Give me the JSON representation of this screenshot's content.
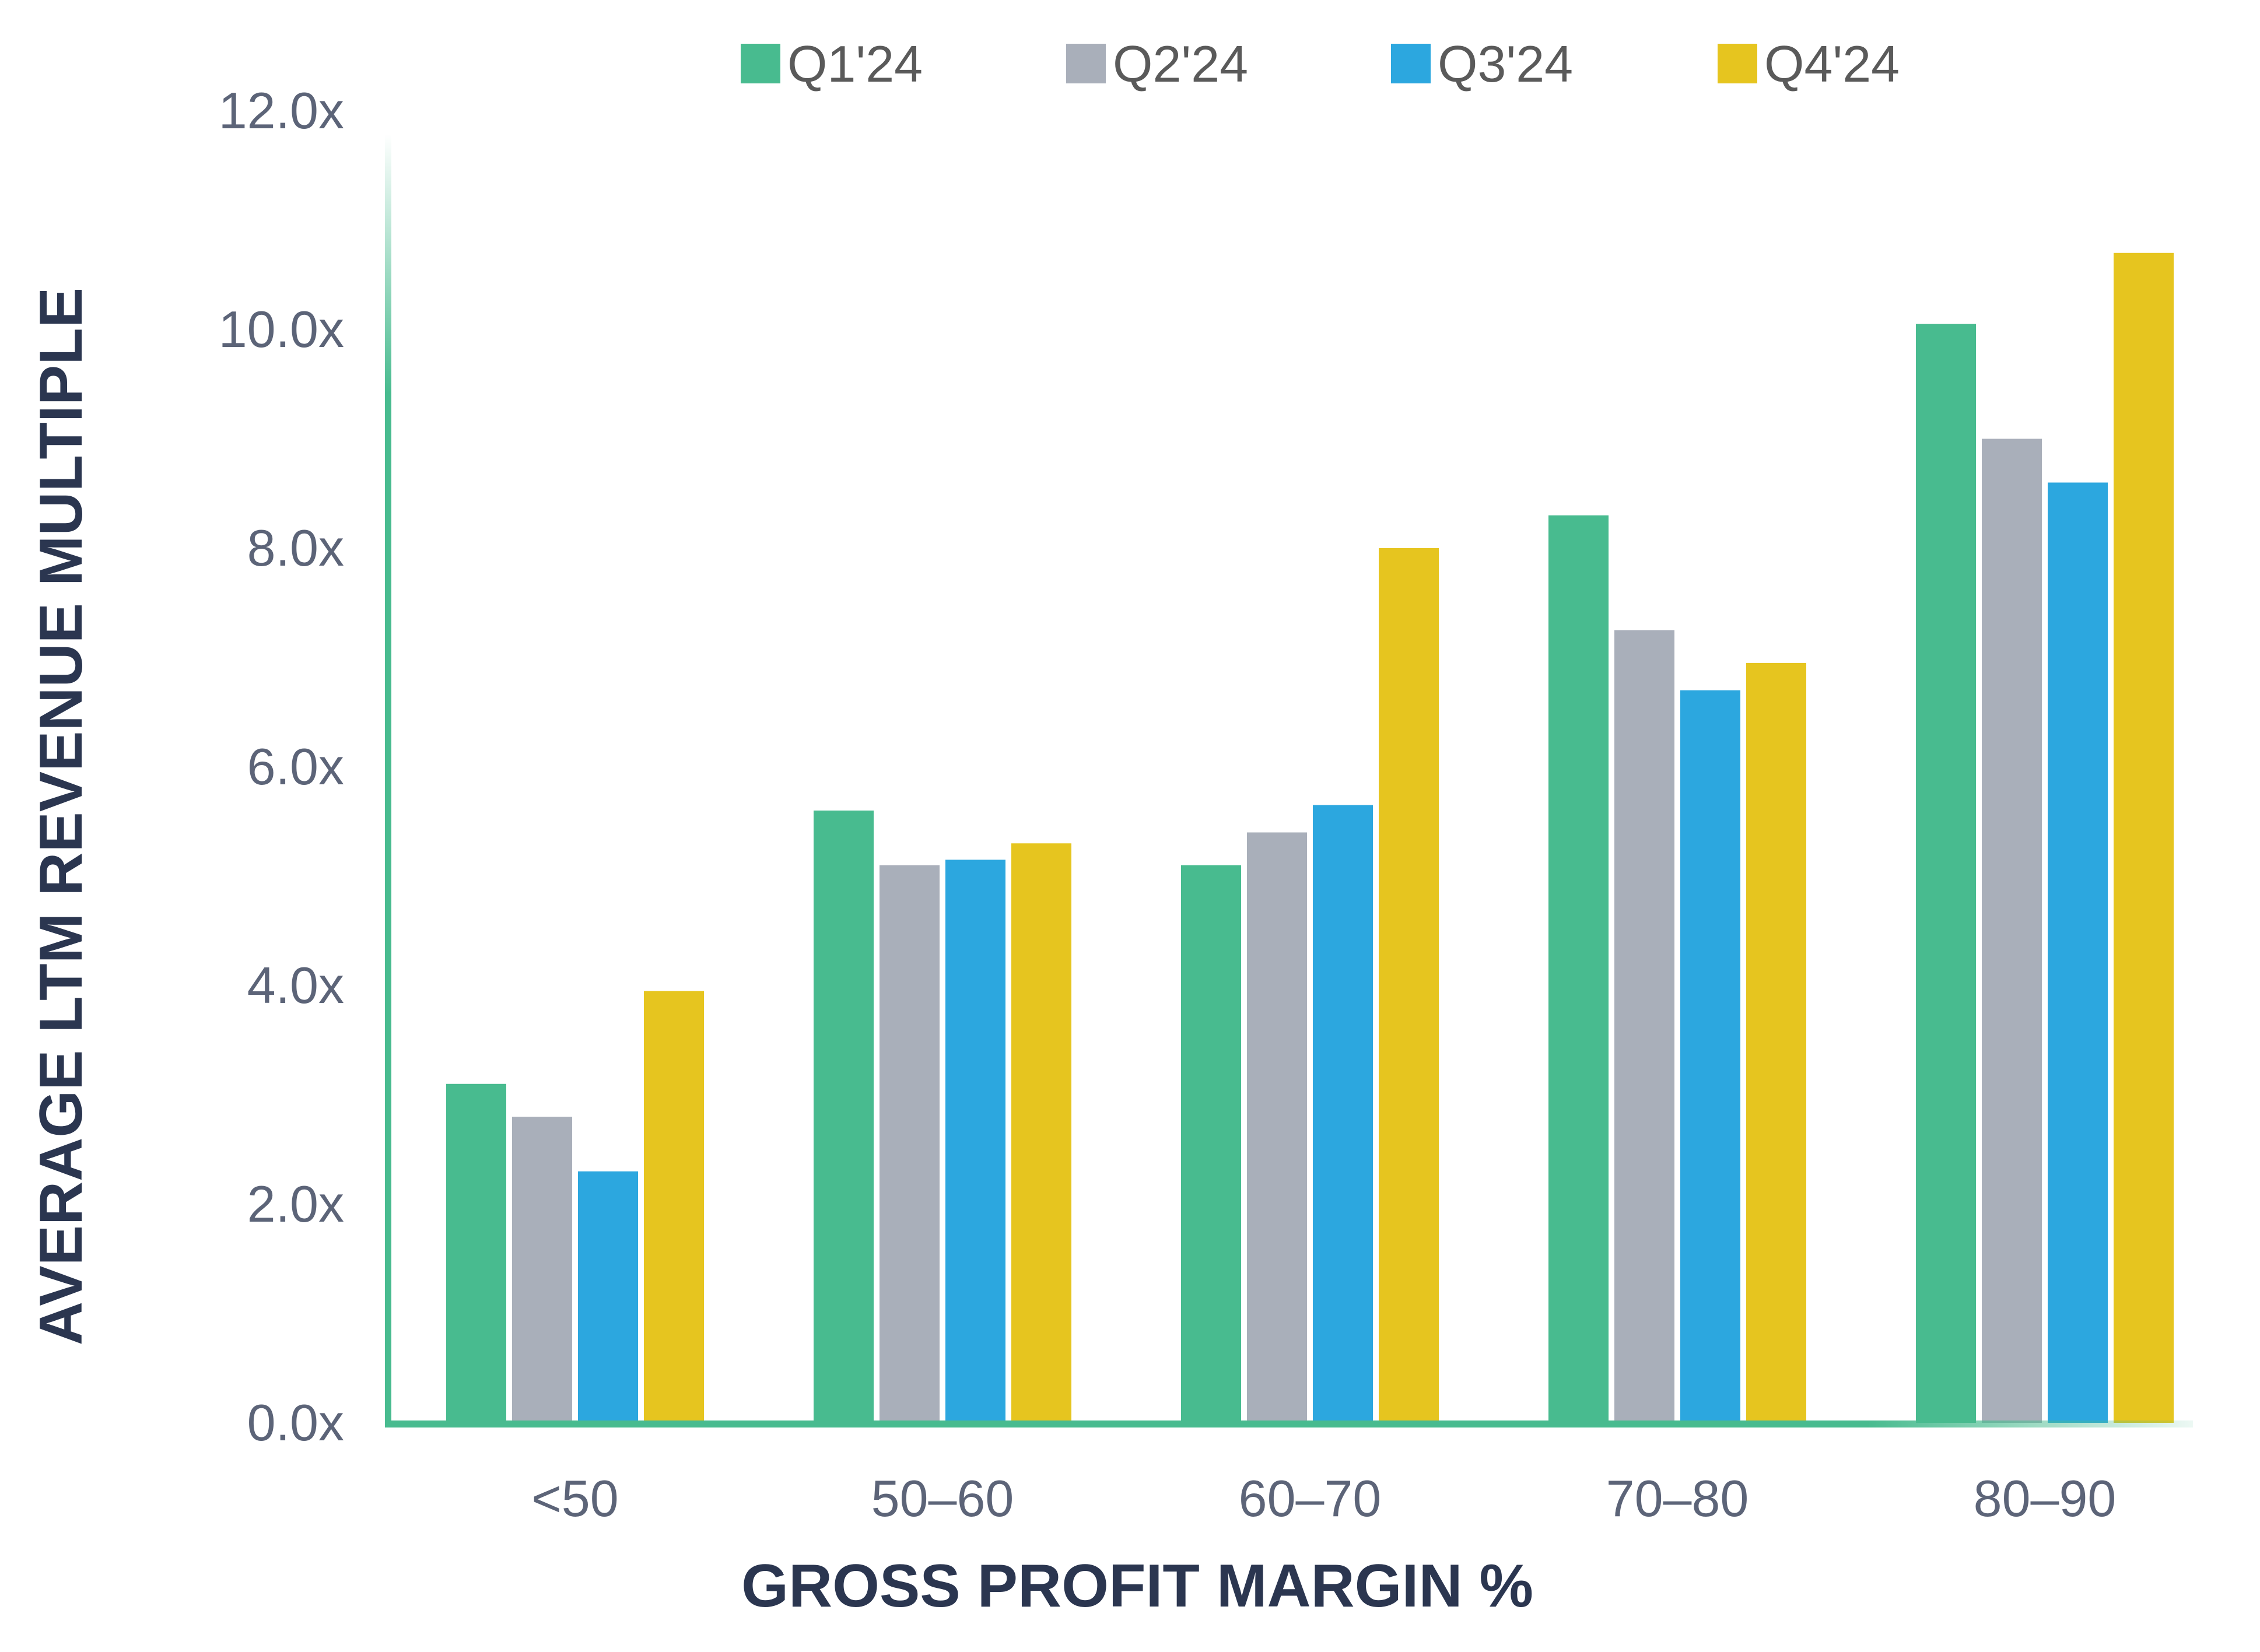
{
  "chart_data": {
    "type": "bar",
    "title": "",
    "xlabel": "GROSS PROFIT MARGIN %",
    "ylabel": "AVERAGE LTM REVENUE MULTIPLE",
    "categories": [
      "<50",
      "50–60",
      "60–70",
      "70–80",
      "80–90"
    ],
    "series": [
      {
        "name": "Q1'24",
        "color": "#48bb8f",
        "values": [
          3.1,
          5.6,
          5.1,
          8.3,
          10.05
        ]
      },
      {
        "name": "Q2'24",
        "color": "#a9afba",
        "values": [
          2.8,
          5.1,
          5.4,
          7.25,
          9.0
        ]
      },
      {
        "name": "Q3'24",
        "color": "#2ca7df",
        "values": [
          2.3,
          5.15,
          5.65,
          6.7,
          8.6
        ]
      },
      {
        "name": "Q4'24",
        "color": "#e6c51f",
        "values": [
          3.95,
          5.3,
          8.0,
          6.95,
          10.7
        ]
      }
    ],
    "yticks": [
      "0.0x",
      "2.0x",
      "4.0x",
      "6.0x",
      "8.0x",
      "10.0x",
      "12.0x"
    ],
    "ylim": [
      0,
      12
    ],
    "grid": false,
    "legend_position": "top",
    "axis_color": "#48bb8f"
  }
}
